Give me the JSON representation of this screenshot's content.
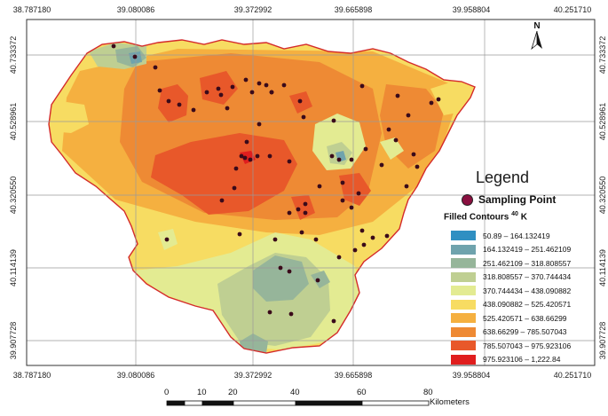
{
  "axes": {
    "x_ticks": [
      "38.787180",
      "39.080086",
      "39.372992",
      "39.665898",
      "39.958804",
      "40.251710"
    ],
    "y_ticks": [
      "40.733372",
      "40.528961",
      "40.320550",
      "40.114139",
      "39.907728"
    ]
  },
  "legend": {
    "title": "Legend",
    "sampling_label": "Sampling Point",
    "contours_heading": "Filled Contours",
    "contours_sup": "40",
    "contours_suffix": "K",
    "items": [
      {
        "label": "50.89 – 164.132419",
        "color": "#2f8fc2"
      },
      {
        "label": "164.132419 – 251.462109",
        "color": "#6fa3ad"
      },
      {
        "label": "251.462109 – 318.808557",
        "color": "#96b59a"
      },
      {
        "label": "318.808557 – 370.744434",
        "color": "#bfcf92"
      },
      {
        "label": "370.744434 – 438.090882",
        "color": "#e3eb92"
      },
      {
        "label": "438.090882 – 525.420571",
        "color": "#f7dc62"
      },
      {
        "label": "525.420571 – 638.66299",
        "color": "#f5b040"
      },
      {
        "label": "638.66299 – 785.507043",
        "color": "#ee8a34"
      },
      {
        "label": "785.507043 – 975.923106",
        "color": "#e8582a"
      },
      {
        "label": "975.923106 – 1,222.84",
        "color": "#e01e1e"
      }
    ]
  },
  "north": {
    "label": "N"
  },
  "scale": {
    "ticks": [
      "0",
      "10",
      "20",
      "40",
      "60",
      "80"
    ],
    "unit": "Kilometers"
  },
  "colors": {
    "boundary": "#d42a2a",
    "sampling_point": "#8a1040",
    "grid": "#9a9a9a"
  },
  "map": {
    "feature": "filled-contour-surface",
    "sampling_points_count": 74
  }
}
